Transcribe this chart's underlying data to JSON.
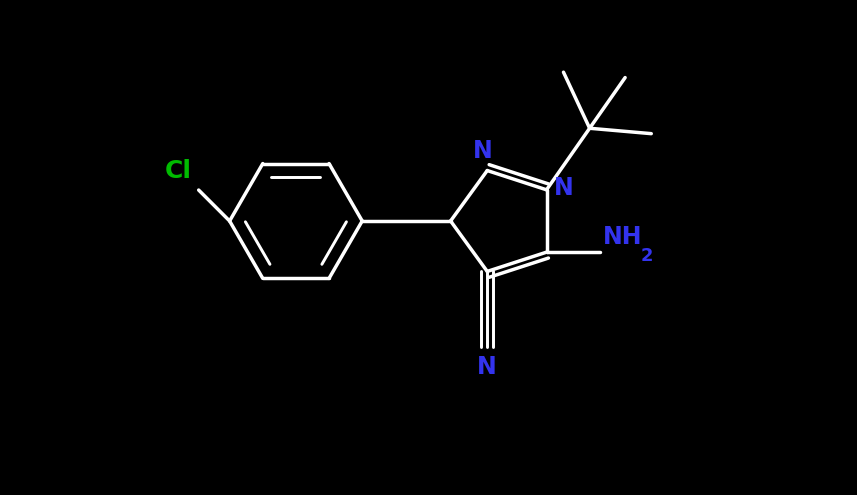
{
  "background_color": "#000000",
  "bond_color": "#ffffff",
  "N_color": "#3333ee",
  "Cl_color": "#00bb00",
  "bond_width": 2.5,
  "figsize": [
    8.57,
    4.95
  ],
  "dpi": 100,
  "xlim": [
    -4.5,
    3.5
  ],
  "ylim": [
    -2.8,
    2.8
  ]
}
